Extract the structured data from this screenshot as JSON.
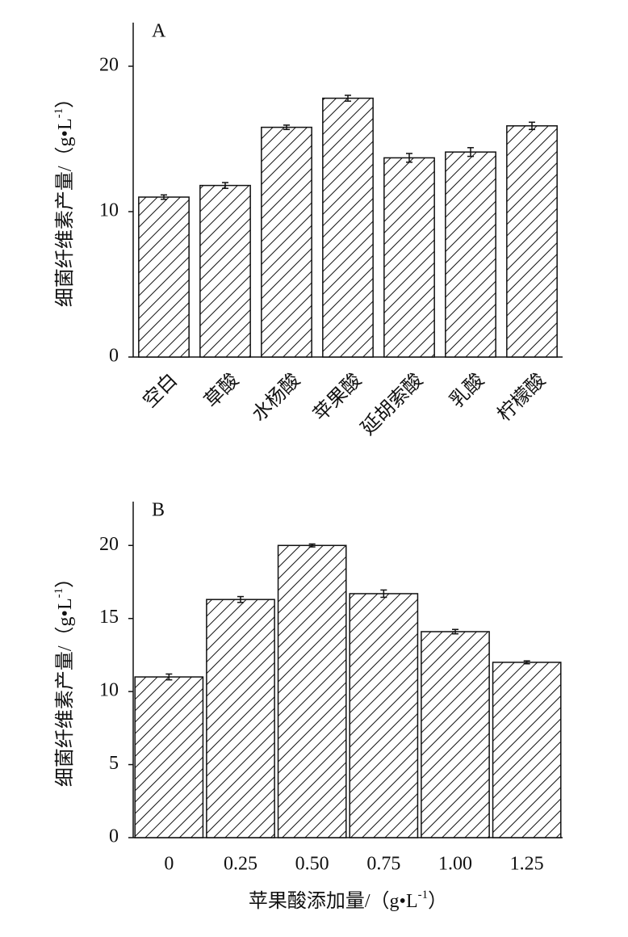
{
  "chart_data": [
    {
      "type": "bar",
      "panel": "A",
      "ylabel": [
        "细菌纤维素产量/（g•L",
        "-1",
        "）"
      ],
      "categories": [
        "空白",
        "草酸",
        "水杨酸",
        "苹果酸",
        "延胡索酸",
        "乳酸",
        "柠檬酸"
      ],
      "values": [
        11.0,
        11.8,
        15.8,
        17.8,
        13.7,
        14.1,
        15.9
      ],
      "errors": [
        0.15,
        0.2,
        0.15,
        0.2,
        0.3,
        0.3,
        0.25
      ],
      "ylim": [
        0,
        23
      ],
      "yticks": [
        0,
        10,
        20
      ],
      "color": "#111111",
      "grid": false
    },
    {
      "type": "bar",
      "panel": "B",
      "ylabel": [
        "细菌纤维素产量/（g•L",
        "-1",
        "）"
      ],
      "xlabel": [
        "苹果酸添加量/（g•L",
        "-1",
        "）"
      ],
      "categories": [
        "0",
        "0.25",
        "0.50",
        "0.75",
        "1.00",
        "1.25"
      ],
      "values": [
        11.0,
        16.3,
        20.0,
        16.7,
        14.1,
        12.0
      ],
      "errors": [
        0.2,
        0.2,
        0.1,
        0.25,
        0.15,
        0.1
      ],
      "ylim": [
        0,
        23
      ],
      "yticks": [
        0,
        5,
        10,
        15,
        20
      ],
      "color": "#111111",
      "grid": false
    }
  ]
}
